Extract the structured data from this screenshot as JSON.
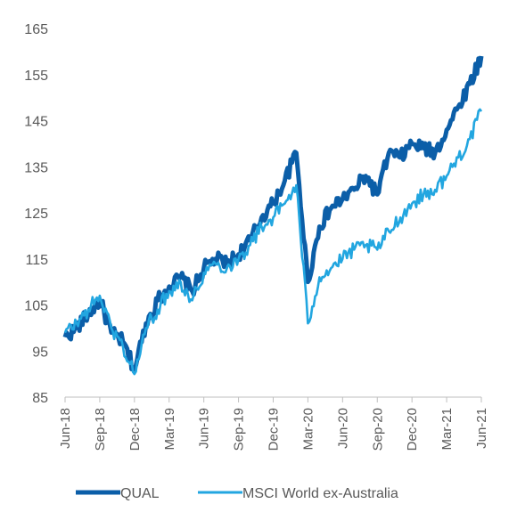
{
  "chart_data": {
    "type": "line",
    "title": "",
    "xlabel": "",
    "ylabel": "",
    "ylim": [
      85,
      165
    ],
    "yticks": [
      "85",
      "95",
      "105",
      "115",
      "125",
      "135",
      "145",
      "155",
      "165"
    ],
    "xticks": [
      "Jun-18",
      "Sep-18",
      "Dec-18",
      "Mar-19",
      "Jun-19",
      "Sep-19",
      "Dec-19",
      "Mar-20",
      "Jun-20",
      "Sep-20",
      "Dec-20",
      "Mar-21",
      "Jun-21"
    ],
    "grid": false,
    "legend_position": "bottom",
    "series": [
      {
        "name": "QUAL",
        "color": "#0b5ea8",
        "x": [
          "Jun-18",
          "Jul-18",
          "Aug-18",
          "Sep-18",
          "Oct-18",
          "Nov-18",
          "Dec-18",
          "Jan-19",
          "Feb-19",
          "Mar-19",
          "Apr-19",
          "May-19",
          "Jun-19",
          "Jul-19",
          "Aug-19",
          "Sep-19",
          "Oct-19",
          "Nov-19",
          "Dec-19",
          "Jan-20",
          "Feb-20",
          "Mar-20",
          "Apr-20",
          "May-20",
          "Jun-20",
          "Jul-20",
          "Aug-20",
          "Sep-20",
          "Oct-20",
          "Nov-20",
          "Dec-20",
          "Jan-21",
          "Feb-21",
          "Mar-21",
          "Apr-21",
          "May-21",
          "Jun-21"
        ],
        "values": [
          98,
          100,
          103,
          106,
          99,
          97,
          91,
          101,
          106,
          109,
          111,
          108,
          113,
          115,
          114,
          116,
          119,
          124,
          127,
          132,
          138,
          110,
          122,
          126,
          128,
          130,
          133,
          129,
          138,
          137,
          140,
          139,
          138,
          143,
          148,
          153,
          159
        ]
      },
      {
        "name": "MSCI World ex-Australia",
        "color": "#22a6e0",
        "x": [
          "Jun-18",
          "Jul-18",
          "Aug-18",
          "Sep-18",
          "Oct-18",
          "Nov-18",
          "Dec-18",
          "Jan-19",
          "Feb-19",
          "Mar-19",
          "Apr-19",
          "May-19",
          "Jun-19",
          "Jul-19",
          "Aug-19",
          "Sep-19",
          "Oct-19",
          "Nov-19",
          "Dec-19",
          "Jan-20",
          "Feb-20",
          "Mar-20",
          "Apr-20",
          "May-20",
          "Jun-20",
          "Jul-20",
          "Aug-20",
          "Sep-20",
          "Oct-20",
          "Nov-20",
          "Dec-20",
          "Jan-21",
          "Feb-21",
          "Mar-21",
          "Apr-21",
          "May-21",
          "Jun-21"
        ],
        "values": [
          99,
          101,
          104,
          107,
          100,
          96,
          90,
          100,
          104,
          108,
          110,
          106,
          112,
          114,
          113,
          115,
          118,
          122,
          124,
          127,
          131,
          101,
          111,
          113,
          115,
          117,
          118,
          117,
          121,
          124,
          127,
          129,
          130,
          133,
          137,
          141,
          147
        ]
      }
    ]
  }
}
